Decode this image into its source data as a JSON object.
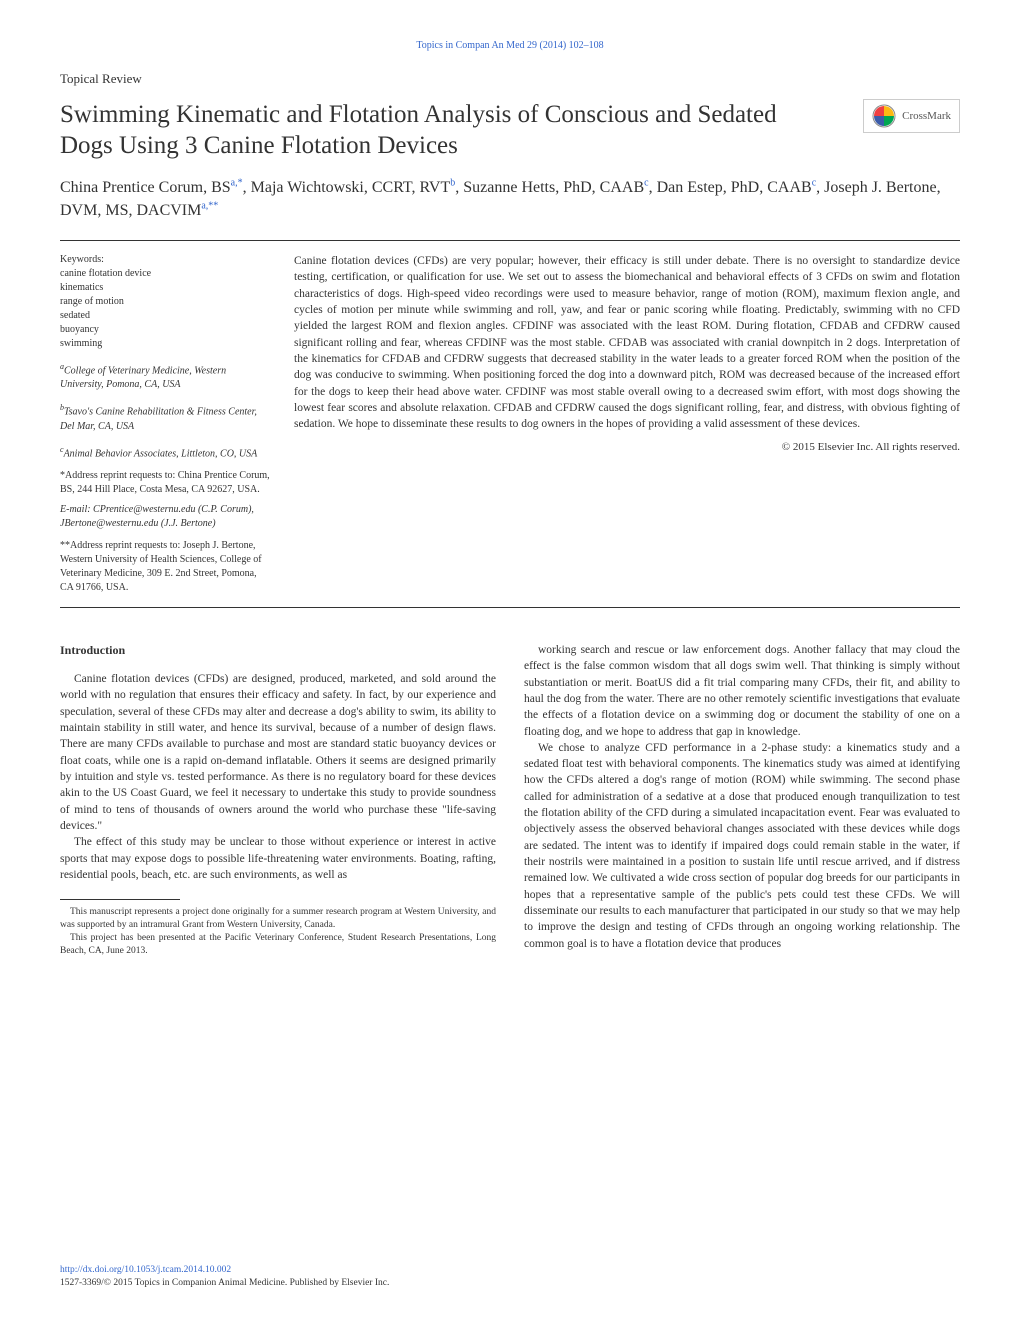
{
  "header_link": "Topics in Compan An Med 29 (2014) 102–108",
  "article_type": "Topical Review",
  "title": "Swimming Kinematic and Flotation Analysis of Conscious and Sedated Dogs Using 3 Canine Flotation Devices",
  "crossmark_label": "CrossMark",
  "crossmark_colors": {
    "top": "#ef3e42",
    "right": "#fdb913",
    "bottom": "#00a651",
    "left": "#3b5ba9"
  },
  "authors_html": "China Prentice Corum, BS<sup>a,*</sup>, Maja Wichtowski, CCRT, RVT<sup>b</sup>, Suzanne Hetts, PhD, CAAB<sup>c</sup>, Dan Estep, PhD, CAAB<sup>c</sup>, Joseph J. Bertone, DVM, MS, DACVIM<sup>a,**</sup>",
  "keywords_label": "Keywords:",
  "keywords": [
    "canine flotation device",
    "kinematics",
    "range of motion",
    "sedated",
    "buoyancy",
    "swimming"
  ],
  "affiliations": [
    {
      "sup": "a",
      "text": "College of Veterinary Medicine, Western University, Pomona, CA, USA"
    },
    {
      "sup": "b",
      "text": "Tsavo's Canine Rehabilitation & Fitness Center, Del Mar, CA, USA"
    },
    {
      "sup": "c",
      "text": "Animal Behavior Associates, Littleton, CO, USA"
    }
  ],
  "corresp1": "*Address reprint requests to: China Prentice Corum, BS, 244 Hill Place, Costa Mesa, CA 92627, USA.",
  "email_line": "E-mail:  CPrentice@westernu.edu (C.P. Corum), JBertone@westernu.edu (J.J. Bertone)",
  "corresp2": "**Address reprint requests to: Joseph J. Bertone, Western University of Health Sciences, College of Veterinary Medicine, 309 E. 2nd Street, Pomona, CA 91766, USA.",
  "abstract": "Canine flotation devices (CFDs) are very popular; however, their efficacy is still under debate. There is no oversight to standardize device testing, certification, or qualification for use. We set out to assess the biomechanical and behavioral effects of 3 CFDs on swim and flotation characteristics of dogs. High-speed video recordings were used to measure behavior, range of motion (ROM), maximum flexion angle, and cycles of motion per minute while swimming and roll, yaw, and fear or panic scoring while floating. Predictably, swimming with no CFD yielded the largest ROM and flexion angles. CFDINF was associated with the least ROM. During flotation, CFDAB and CFDRW caused significant rolling and fear, whereas CFDINF was the most stable. CFDAB was associated with cranial downpitch in 2 dogs. Interpretation of the kinematics for CFDAB and CFDRW suggests that decreased stability in the water leads to a greater forced ROM when the position of the dog was conducive to swimming. When positioning forced the dog into a downward pitch, ROM was decreased because of the increased effort for the dogs to keep their head above water. CFDINF was most stable overall owing to a decreased swim effort, with most dogs showing the lowest fear scores and absolute relaxation. CFDAB and CFDRW caused the dogs significant rolling, fear, and distress, with obvious fighting of sedation. We hope to disseminate these results to dog owners in the hopes of providing a valid assessment of these devices.",
  "copyright_line": "© 2015 Elsevier Inc. All rights reserved.",
  "intro_heading": "Introduction",
  "intro_p1": "Canine flotation devices (CFDs) are designed, produced, marketed, and sold around the world with no regulation that ensures their efficacy and safety. In fact, by our experience and speculation, several of these CFDs may alter and decrease a dog's ability to swim, its ability to maintain stability in still water, and hence its survival, because of a number of design flaws. There are many CFDs available to purchase and most are standard static buoyancy devices or float coats, while one is a rapid on-demand inflatable. Others it seems are designed primarily by intuition and style vs. tested performance. As there is no regulatory board for these devices akin to the US Coast Guard, we feel it necessary to undertake this study to provide soundness of mind to tens of thousands of owners around the world who purchase these \"life-saving devices.\"",
  "intro_p2": "The effect of this study may be unclear to those without experience or interest in active sports that may expose dogs to possible life-threatening water environments. Boating, rafting, residential pools, beach, etc. are such environments, as well as",
  "col2_p1": "working search and rescue or law enforcement dogs. Another fallacy that may cloud the effect is the false common wisdom that all dogs swim well. That thinking is simply without substantiation or merit. BoatUS did a fit trial comparing many CFDs, their fit, and ability to haul the dog from the water. There are no other remotely scientific investigations that evaluate the effects of a flotation device on a swimming dog or document the stability of one on a floating dog, and we hope to address that gap in knowledge.",
  "col2_p2": "We chose to analyze CFD performance in a 2-phase study: a kinematics study and a sedated float test with behavioral components. The kinematics study was aimed at identifying how the CFDs altered a dog's range of motion (ROM) while swimming. The second phase called for administration of a sedative at a dose that produced enough tranquilization to test the flotation ability of the CFD during a simulated incapacitation event. Fear was evaluated to objectively assess the observed behavioral changes associated with these devices while dogs are sedated. The intent was to identify if impaired dogs could remain stable in the water, if their nostrils were maintained in a position to sustain life until rescue arrived, and if distress remained low. We cultivated a wide cross section of popular dog breeds for our participants in hopes that a representative sample of the public's pets could test these CFDs. We will disseminate our results to each manufacturer that participated in our study so that we may help to improve the design and testing of CFDs through an ongoing working relationship. The common goal is to have a flotation device that produces",
  "footnote1": "This manuscript represents a project done originally for a summer research program at Western University, and was supported by an intramural Grant from Western University, Canada.",
  "footnote2": "This project has been presented at the Pacific Veterinary Conference, Student Research Presentations, Long Beach, CA, June 2013.",
  "doi_link": "http://dx.doi.org/10.1053/j.tcam.2014.10.002",
  "issn_line": "1527-3369/© 2015 Topics in Companion Animal Medicine. Published by Elsevier Inc."
}
